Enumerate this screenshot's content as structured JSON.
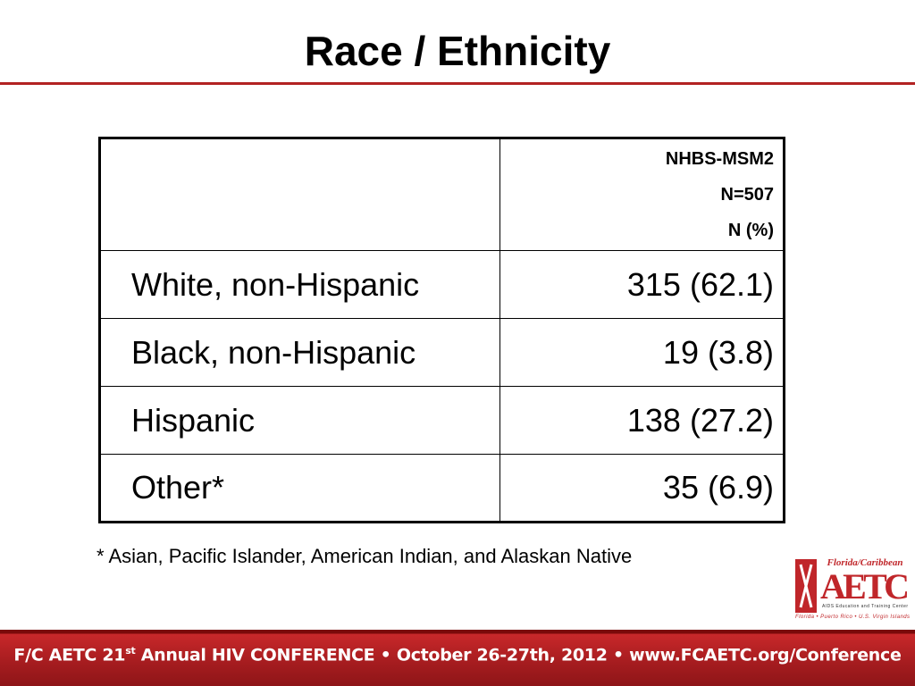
{
  "title": "Race / Ethnicity",
  "table": {
    "header": [
      "NHBS-MSM2",
      "N=507",
      "N (%)"
    ],
    "rows": [
      [
        "White, non-Hispanic",
        "315 (62.1)"
      ],
      [
        "Black, non-Hispanic",
        "19 (3.8)"
      ],
      [
        "Hispanic",
        "138 (27.2)"
      ],
      [
        "Other*",
        "35 (6.9)"
      ]
    ]
  },
  "footnote": "* Asian, Pacific Islander, American Indian, and Alaskan Native",
  "logo": {
    "top": "Florida/Caribbean",
    "name": "AETC",
    "subtitle": "AIDS Education and Training Center",
    "places": "Florida • Puerto Rico • U.S. Virgin Islands"
  },
  "footer": {
    "lead": "F/C AETC 21",
    "sup": "st",
    "rest": " Annual HIV CONFERENCE • October 26-27th, 2012 • www.FCAETC.org/Conference"
  }
}
